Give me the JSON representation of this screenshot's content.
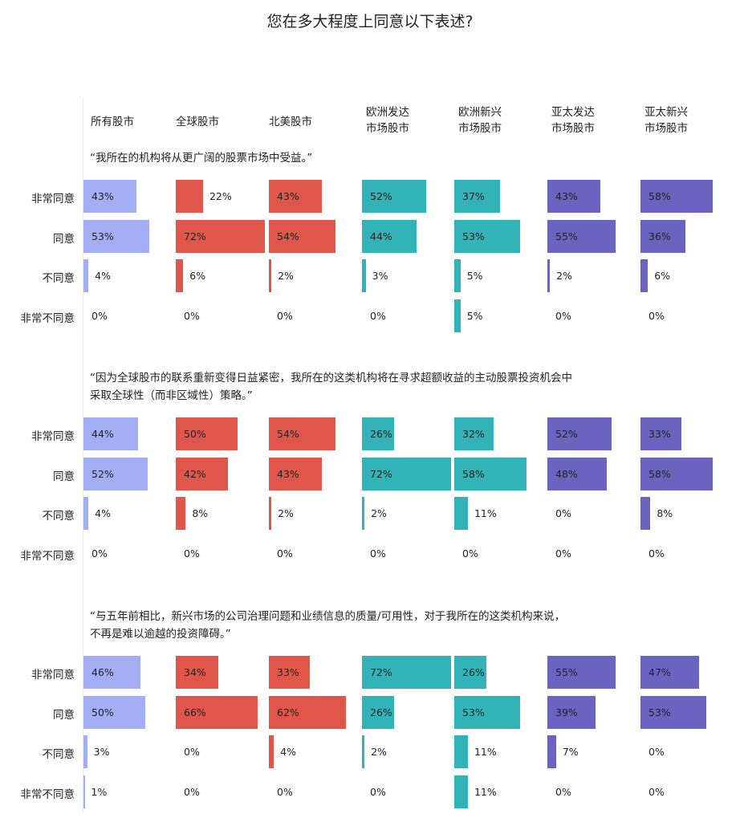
{
  "title": "您在多大程度上同意以下表述?",
  "columns": [
    {
      "label": "所有股市",
      "lines": [
        "所有股市"
      ],
      "color": "#a3aef5"
    },
    {
      "label": "全球股市",
      "lines": [
        "全球股市"
      ],
      "color": "#e0564a"
    },
    {
      "label": "北美股市",
      "lines": [
        "北美股市"
      ],
      "color": "#e0564a"
    },
    {
      "label": "欧洲发达市场股市",
      "lines": [
        "欧洲发达",
        "市场股市"
      ],
      "color": "#32b3b7"
    },
    {
      "label": "欧洲新兴市场股市",
      "lines": [
        "欧洲新兴",
        "市场股市"
      ],
      "color": "#32b3b7"
    },
    {
      "label": "亚太发达市场股市",
      "lines": [
        "亚太发达",
        "市场股市"
      ],
      "color": "#6a63c0"
    },
    {
      "label": "亚太新兴市场股市",
      "lines": [
        "亚太新兴",
        "市场股市"
      ],
      "color": "#6a63c0"
    }
  ],
  "row_labels": [
    "非常同意",
    "同意",
    "不同意",
    "非常不同意"
  ],
  "sections": [
    {
      "statement_lines": [
        "“我所在的机构将从更广阔的股票市场中受益。”"
      ],
      "values": [
        [
          43,
          22,
          43,
          52,
          37,
          43,
          58
        ],
        [
          53,
          72,
          54,
          44,
          53,
          55,
          36
        ],
        [
          4,
          6,
          2,
          3,
          5,
          2,
          6
        ],
        [
          0,
          0,
          0,
          0,
          5,
          0,
          0
        ]
      ]
    },
    {
      "statement_lines": [
        "“因为全球股市的联系重新变得日益紧密，我所在的这类机构将在寻求超额收益的主动股票投资机会中",
        "采取全球性（而非区域性）策略。”"
      ],
      "values": [
        [
          44,
          50,
          54,
          26,
          32,
          52,
          33
        ],
        [
          52,
          42,
          43,
          72,
          58,
          48,
          58
        ],
        [
          4,
          8,
          2,
          2,
          11,
          0,
          8
        ],
        [
          0,
          0,
          0,
          0,
          0,
          0,
          0
        ]
      ]
    },
    {
      "statement_lines": [
        "“与五年前相比，新兴市场的公司治理问题和业绩信息的质量/可用性，对于我所在的这类机构来说，",
        " 不再是难以逾越的投资障碍。”"
      ],
      "values": [
        [
          46,
          34,
          33,
          72,
          26,
          55,
          47
        ],
        [
          50,
          66,
          62,
          26,
          53,
          39,
          53
        ],
        [
          3,
          0,
          4,
          2,
          11,
          7,
          0
        ],
        [
          1,
          0,
          0,
          0,
          11,
          0,
          0
        ]
      ]
    }
  ],
  "chart_data": {
    "type": "bar",
    "orientation": "horizontal",
    "title": "您在多大程度上同意以下表述?",
    "categories": [
      "非常同意",
      "同意",
      "不同意",
      "非常不同意"
    ],
    "groups": [
      "所有股市",
      "全球股市",
      "北美股市",
      "欧洲发达市场股市",
      "欧洲新兴市场股市",
      "亚太发达市场股市",
      "亚太新兴市场股市"
    ],
    "unit": "%",
    "panels": [
      {
        "statement": "“我所在的机构将从更广阔的股票市场中受益。”",
        "series": [
          {
            "name": "所有股市",
            "values": [
              43,
              53,
              4,
              0
            ]
          },
          {
            "name": "全球股市",
            "values": [
              22,
              72,
              6,
              0
            ]
          },
          {
            "name": "北美股市",
            "values": [
              43,
              54,
              2,
              0
            ]
          },
          {
            "name": "欧洲发达市场股市",
            "values": [
              52,
              44,
              3,
              0
            ]
          },
          {
            "name": "欧洲新兴市场股市",
            "values": [
              37,
              53,
              5,
              5
            ]
          },
          {
            "name": "亚太发达市场股市",
            "values": [
              43,
              55,
              2,
              0
            ]
          },
          {
            "name": "亚太新兴市场股市",
            "values": [
              58,
              36,
              6,
              0
            ]
          }
        ]
      },
      {
        "statement": "“因为全球股市的联系重新变得日益紧密，我所在的这类机构将在寻求超额收益的主动股票投资机会中采取全球性（而非区域性）策略。”",
        "series": [
          {
            "name": "所有股市",
            "values": [
              44,
              52,
              4,
              0
            ]
          },
          {
            "name": "全球股市",
            "values": [
              50,
              42,
              8,
              0
            ]
          },
          {
            "name": "北美股市",
            "values": [
              54,
              43,
              2,
              0
            ]
          },
          {
            "name": "欧洲发达市场股市",
            "values": [
              26,
              72,
              2,
              0
            ]
          },
          {
            "name": "欧洲新兴市场股市",
            "values": [
              32,
              58,
              11,
              0
            ]
          },
          {
            "name": "亚太发达市场股市",
            "values": [
              52,
              48,
              0,
              0
            ]
          },
          {
            "name": "亚太新兴市场股市",
            "values": [
              33,
              58,
              8,
              0
            ]
          }
        ]
      },
      {
        "statement": "“与五年前相比，新兴市场的公司治理问题和业绩信息的质量/可用性，对于我所在的这类机构来说，不再是难以逾越的投资障碍。”",
        "series": [
          {
            "name": "所有股市",
            "values": [
              46,
              50,
              3,
              1
            ]
          },
          {
            "name": "全球股市",
            "values": [
              34,
              66,
              0,
              0
            ]
          },
          {
            "name": "北美股市",
            "values": [
              33,
              62,
              4,
              0
            ]
          },
          {
            "name": "欧洲发达市场股市",
            "values": [
              72,
              26,
              2,
              0
            ]
          },
          {
            "name": "欧洲新兴市场股市",
            "values": [
              26,
              53,
              11,
              11
            ]
          },
          {
            "name": "亚太发达市场股市",
            "values": [
              55,
              39,
              7,
              0
            ]
          },
          {
            "name": "亚太新兴市场股市",
            "values": [
              47,
              53,
              0,
              0
            ]
          }
        ]
      }
    ],
    "colors": {
      "all": "#a3aef5",
      "global_na": "#e0564a",
      "europe": "#32b3b7",
      "apac": "#6a63c0"
    },
    "grid": false,
    "legend": "none"
  }
}
